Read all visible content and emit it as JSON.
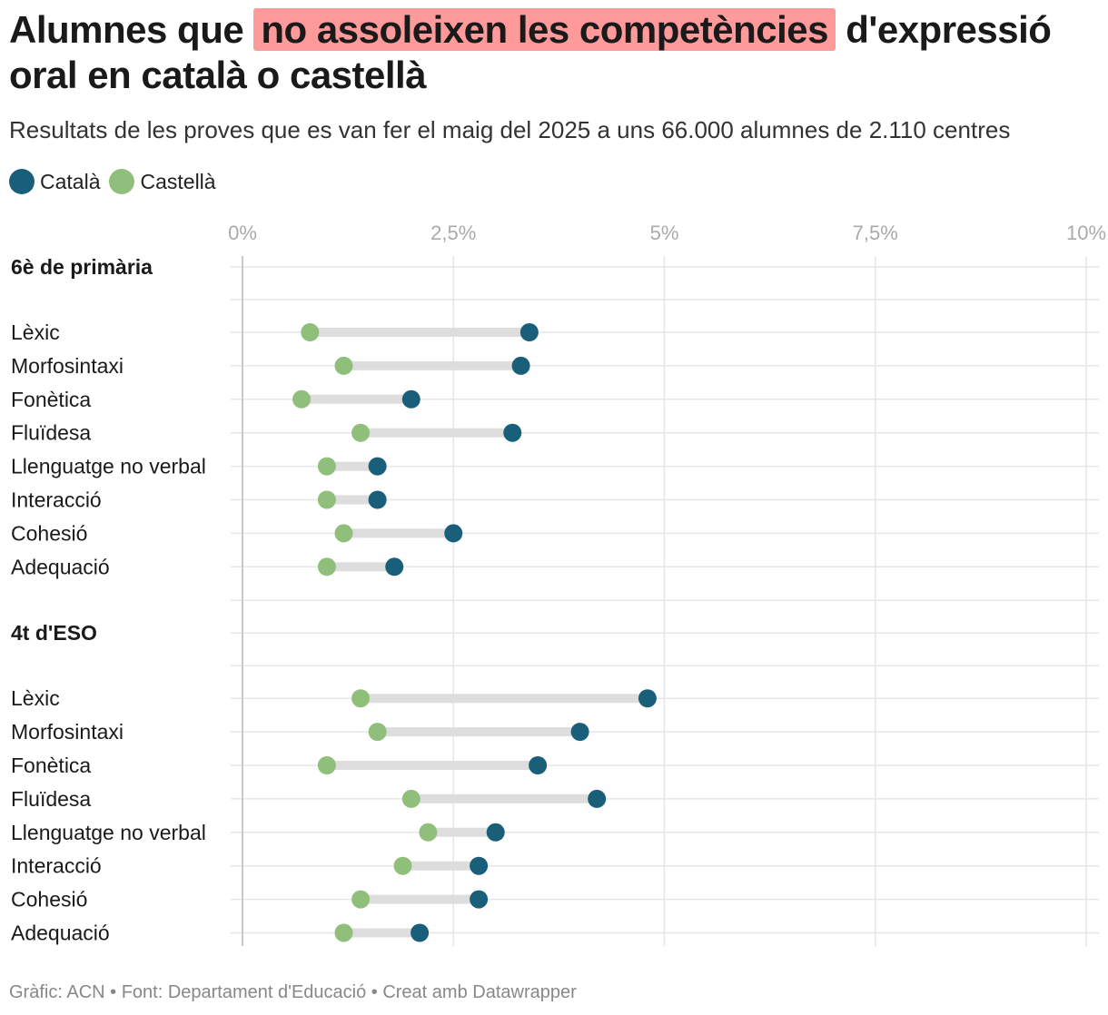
{
  "title": {
    "before": "Alumnes que",
    "highlight": "no assoleixen les competències",
    "after": "d'expressió oral en català o castellà"
  },
  "subtitle": "Resultats de les proves que es van fer el maig del 2025 a uns 66.000 alumnes de 2.110 centres",
  "footer": "Gràfic: ACN • Font: Departament d'Educació • Creat amb Datawrapper",
  "colors": {
    "catala": "#1a5f7a",
    "castella": "#8fbf7a",
    "highlight": "#ff9a9a",
    "connector": "#dddddd"
  },
  "chart_data": {
    "type": "dot",
    "x_ticks": [
      "0%",
      "2,5%",
      "5%",
      "7,5%",
      "10%"
    ],
    "xlim": [
      0,
      10
    ],
    "series": [
      {
        "name": "Català",
        "color": "#1a5f7a"
      },
      {
        "name": "Castellà",
        "color": "#8fbf7a"
      }
    ],
    "groups": [
      {
        "label": "6è de primària",
        "rows": [
          {
            "label": "Lèxic",
            "catala": 3.4,
            "castella": 0.8
          },
          {
            "label": "Morfosintaxi",
            "catala": 3.3,
            "castella": 1.2
          },
          {
            "label": "Fonètica",
            "catala": 2.0,
            "castella": 0.7
          },
          {
            "label": "Fluïdesa",
            "catala": 3.2,
            "castella": 1.4
          },
          {
            "label": "Llenguatge no verbal",
            "catala": 1.6,
            "castella": 1.0
          },
          {
            "label": "Interacció",
            "catala": 1.6,
            "castella": 1.0
          },
          {
            "label": "Cohesió",
            "catala": 2.5,
            "castella": 1.2
          },
          {
            "label": "Adequació",
            "catala": 1.8,
            "castella": 1.0
          }
        ]
      },
      {
        "label": "4t d'ESO",
        "rows": [
          {
            "label": "Lèxic",
            "catala": 4.8,
            "castella": 1.4
          },
          {
            "label": "Morfosintaxi",
            "catala": 4.0,
            "castella": 1.6
          },
          {
            "label": "Fonètica",
            "catala": 3.5,
            "castella": 1.0
          },
          {
            "label": "Fluïdesa",
            "catala": 4.2,
            "castella": 2.0
          },
          {
            "label": "Llenguatge no verbal",
            "catala": 3.0,
            "castella": 2.2
          },
          {
            "label": "Interacció",
            "catala": 2.8,
            "castella": 1.9
          },
          {
            "label": "Cohesió",
            "catala": 2.8,
            "castella": 1.4
          },
          {
            "label": "Adequació",
            "catala": 2.1,
            "castella": 1.2
          }
        ]
      }
    ]
  }
}
